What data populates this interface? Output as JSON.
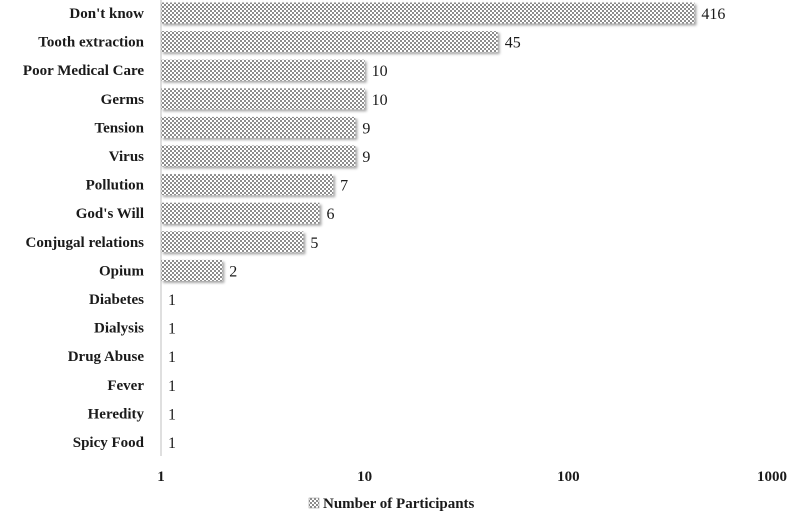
{
  "chart_data": {
    "type": "bar",
    "orientation": "horizontal",
    "xscale": "log",
    "xlim": [
      1,
      1000
    ],
    "grid": false,
    "legend_position": "bottom",
    "categories": [
      "Don't know",
      "Tooth extraction",
      "Poor Medical Care",
      "Germs",
      "Tension",
      "Virus",
      "Pollution",
      "God's Will",
      "Conjugal relations",
      "Opium",
      "Diabetes",
      "Dialysis",
      "Drug Abuse",
      "Fever",
      "Heredity",
      "Spicy Food"
    ],
    "series": [
      {
        "name": "Number of Participants",
        "values": [
          416,
          45,
          10,
          10,
          9,
          9,
          7,
          6,
          5,
          2,
          1,
          1,
          1,
          1,
          1,
          1
        ]
      }
    ],
    "x_ticks": [
      "1",
      "10",
      "100",
      "1000"
    ],
    "tick_values": [
      1,
      10,
      100,
      1000
    ]
  }
}
